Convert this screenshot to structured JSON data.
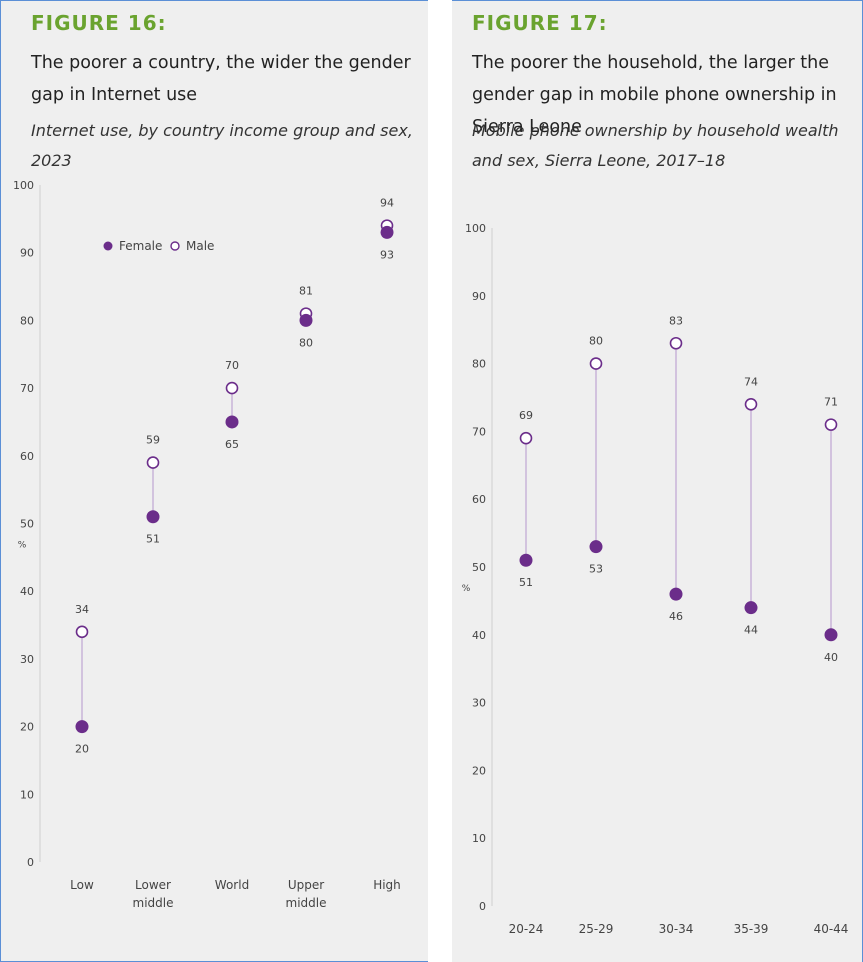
{
  "colors": {
    "female": "#6b2d8a",
    "male_stroke": "#6b2d8a",
    "connector": "#c9b4d8",
    "figure_label": "#6aa32f",
    "panel_bg": "#efefef"
  },
  "left_panel": {
    "figure_label": "FIGURE 16:",
    "title": "The poorer a country, the wider the gender gap in Internet use",
    "subtitle": "Internet use, by country income group and sex, 2023"
  },
  "right_panel": {
    "figure_label": "FIGURE 17:",
    "title": "The poorer the household, the larger the gender gap in mobile phone ownership in Sierra Leone",
    "subtitle": "Mobile phone ownership by household wealth and sex, Sierra Leone, 2017–18"
  },
  "chart_data": [
    {
      "type": "scatter",
      "title": "The poorer a country, the wider the gender gap in Internet use",
      "ylabel": "%",
      "ylim": [
        0,
        100
      ],
      "yticks": [
        0,
        10,
        20,
        30,
        40,
        50,
        60,
        70,
        80,
        90,
        100
      ],
      "categories": [
        [
          "Low"
        ],
        [
          "Lower",
          "middle"
        ],
        [
          "World"
        ],
        [
          "Upper",
          "middle"
        ],
        [
          "High"
        ]
      ],
      "series": [
        {
          "name": "Female",
          "values": [
            20,
            51,
            65,
            80,
            93
          ]
        },
        {
          "name": "Male",
          "values": [
            34,
            59,
            70,
            81,
            94
          ]
        }
      ],
      "legend": "top-left",
      "grid": false
    },
    {
      "type": "scatter",
      "title": "The poorer the household, the larger the gender gap in mobile phone ownership in Sierra Leone",
      "ylabel": "%",
      "ylim": [
        0,
        100
      ],
      "yticks": [
        0,
        10,
        20,
        30,
        40,
        50,
        60,
        70,
        80,
        90,
        100
      ],
      "categories": [
        [
          "20-24"
        ],
        [
          "25-29"
        ],
        [
          "30-34"
        ],
        [
          "35-39"
        ],
        [
          "40-44"
        ]
      ],
      "series": [
        {
          "name": "Female",
          "values": [
            51,
            53,
            46,
            44,
            40
          ]
        },
        {
          "name": "Male",
          "values": [
            69,
            80,
            83,
            74,
            71
          ]
        }
      ],
      "grid": false
    }
  ]
}
